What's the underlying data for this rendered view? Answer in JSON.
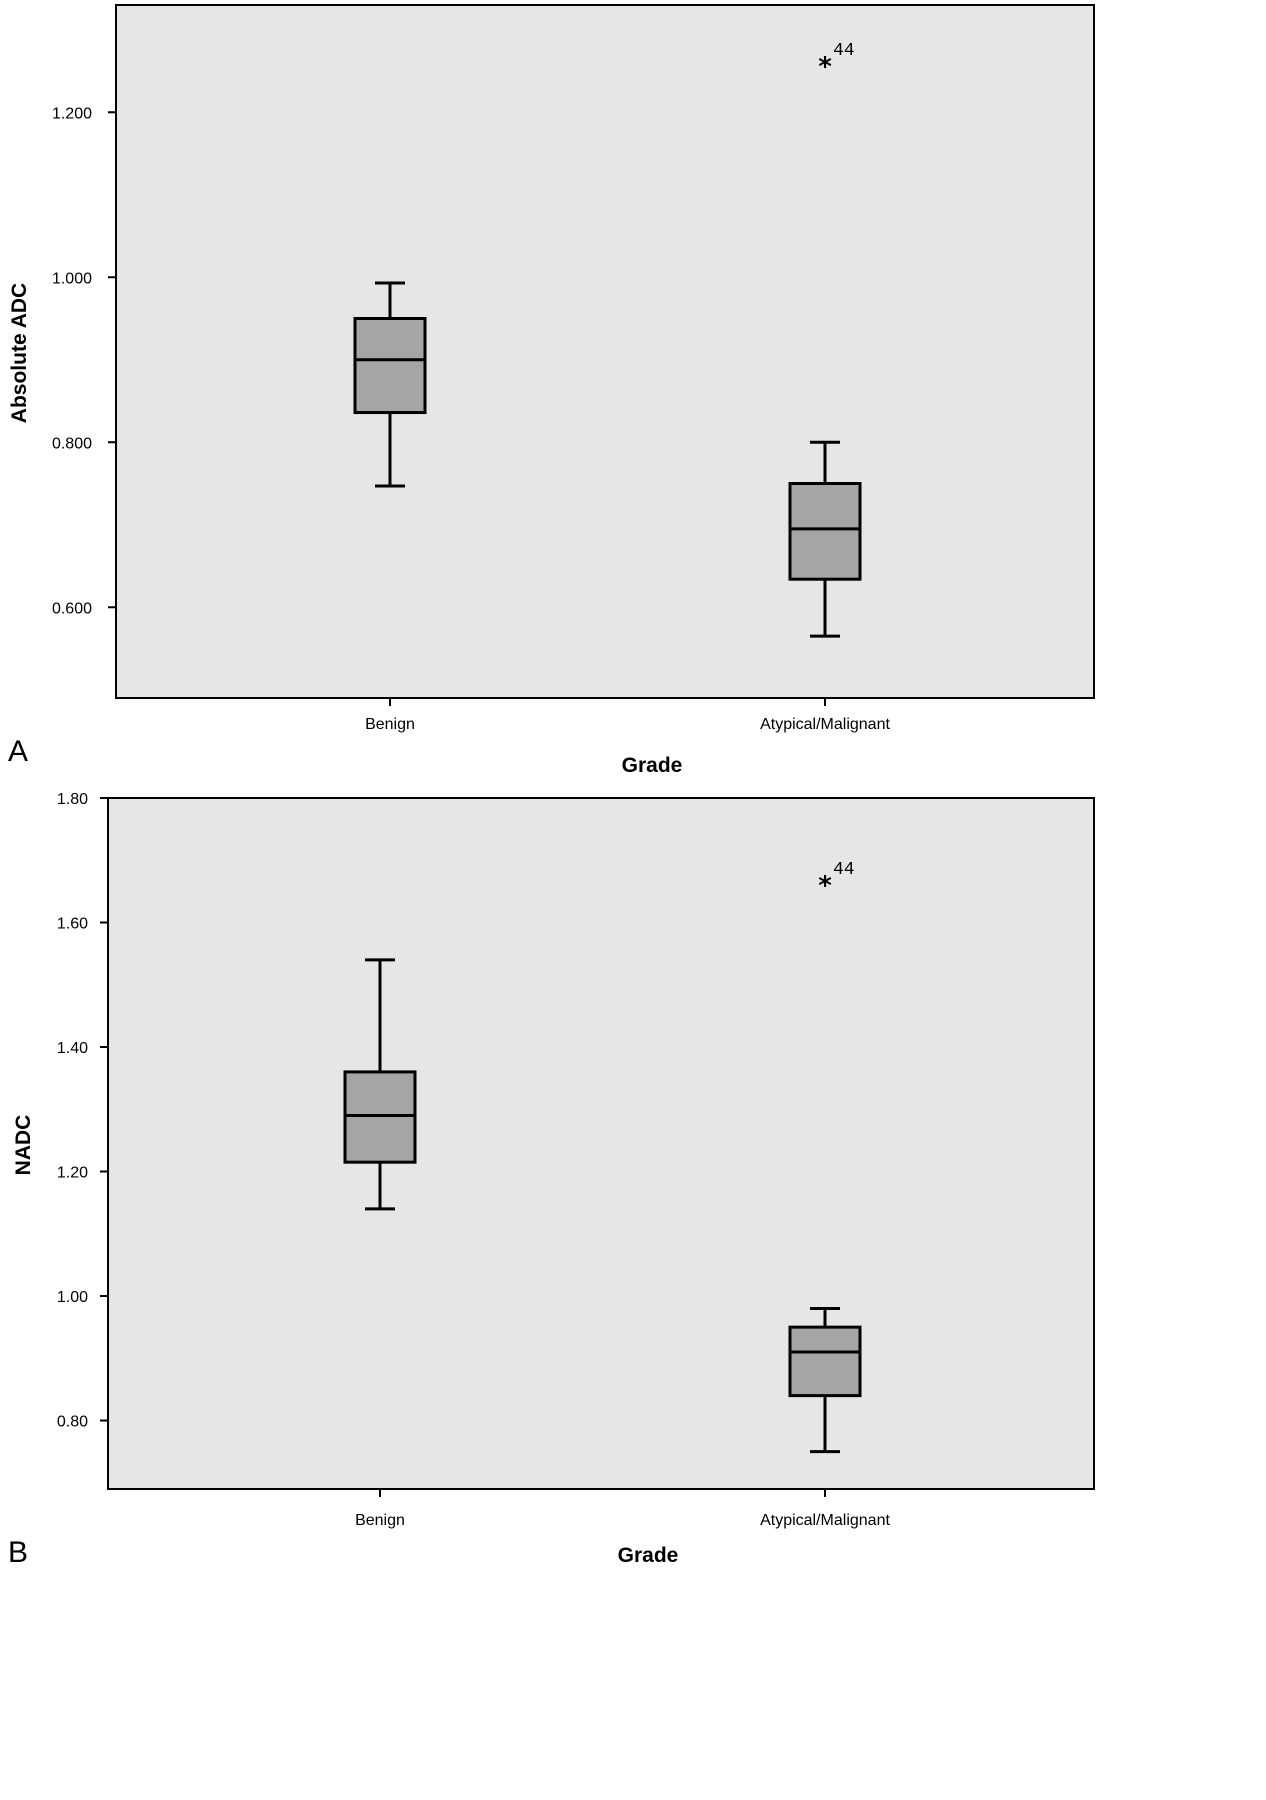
{
  "figure": {
    "colors": {
      "plot_background": "#e6e6e6",
      "box_fill": "#a5a5a5",
      "line": "#000000"
    }
  },
  "chart_data": [
    {
      "type": "box",
      "panel_label": "A",
      "title": "",
      "xlabel": "Grade",
      "ylabel": "Absolute ADC",
      "categories": [
        "Benign",
        "Atypical/Malignant"
      ],
      "ylim": [
        0.49,
        1.33
      ],
      "yticks": [
        0.6,
        0.8,
        1.0,
        1.2
      ],
      "ytick_labels": [
        "0.600",
        "0.800",
        "1.000",
        "1.200"
      ],
      "grid": false,
      "boxes": [
        {
          "category": "Benign",
          "whisker_low": 0.747,
          "q1": 0.836,
          "median": 0.9,
          "q3": 0.95,
          "whisker_high": 0.993,
          "outliers": []
        },
        {
          "category": "Atypical/Malignant",
          "whisker_low": 0.565,
          "q1": 0.634,
          "median": 0.695,
          "q3": 0.75,
          "whisker_high": 0.8,
          "outliers": [
            {
              "value": 1.26,
              "label": "44"
            }
          ]
        }
      ]
    },
    {
      "type": "box",
      "panel_label": "B",
      "title": "",
      "xlabel": "Grade",
      "ylabel": "NADC",
      "categories": [
        "Benign",
        "Atypical/Malignant"
      ],
      "ylim": [
        0.69,
        1.8
      ],
      "yticks": [
        0.8,
        1.0,
        1.2,
        1.4,
        1.6,
        1.8
      ],
      "ytick_labels": [
        "0.80",
        "1.00",
        "1.20",
        "1.40",
        "1.60",
        "1.80"
      ],
      "grid": false,
      "boxes": [
        {
          "category": "Benign",
          "whisker_low": 1.14,
          "q1": 1.215,
          "median": 1.29,
          "q3": 1.36,
          "whisker_high": 1.54,
          "outliers": []
        },
        {
          "category": "Atypical/Malignant",
          "whisker_low": 0.75,
          "q1": 0.84,
          "median": 0.91,
          "q3": 0.95,
          "whisker_high": 0.98,
          "outliers": [
            {
              "value": 1.665,
              "label": "44"
            }
          ]
        }
      ]
    }
  ]
}
